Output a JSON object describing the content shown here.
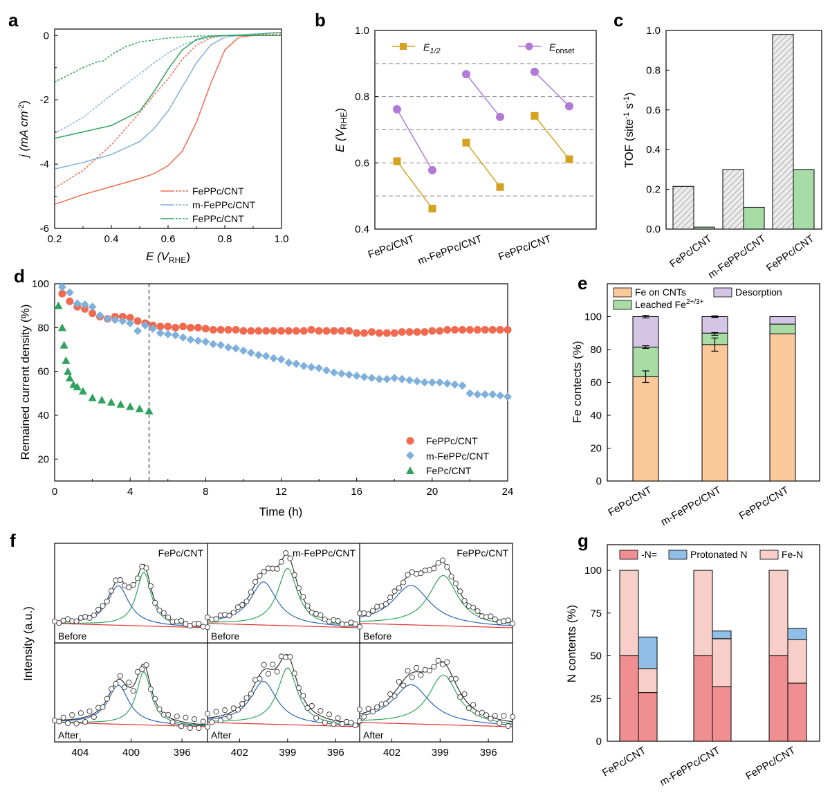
{
  "panel_labels": [
    "a",
    "b",
    "c",
    "d",
    "e",
    "f",
    "g"
  ],
  "colors": {
    "FePPc": "#ef6a4f",
    "mFePPc": "#7fb0dc",
    "FePc": "#2fa35d",
    "e12": "#d4a21f",
    "eonset": "#b07ad6",
    "hatch": "#9a9a9a",
    "tofFill": "#a8dca6",
    "feOnCnt": "#fcc99a",
    "leached": "#a9dba4",
    "desorption": "#d4c4e6",
    "nN": "#ef8f92",
    "protonated": "#8fbfe6",
    "feN": "#f7cfc8"
  },
  "chart_data": [
    {
      "id": "a",
      "type": "line",
      "xlabel": "E (V",
      "xlabel_sub": "RHE",
      "xlabel_close": ")",
      "ylabel": "j (mA cm",
      "ylabel_sup": "-2",
      "ylabel_close": ")",
      "xlim": [
        0.2,
        1.0
      ],
      "ylim": [
        -6,
        0.2
      ],
      "xticks": [
        "0.2",
        "0.4",
        "0.6",
        "0.8",
        "1.0"
      ],
      "yticks": [
        "0",
        "-2",
        "-4",
        "-6"
      ],
      "legend": [
        "FePPc/CNT",
        "m-FePPc/CNT",
        "FePPc/CNT"
      ],
      "series": [
        {
          "name": "FePPc/CNT",
          "style": "solid",
          "x": [
            0.2,
            0.3,
            0.4,
            0.5,
            0.55,
            0.6,
            0.65,
            0.7,
            0.75,
            0.8,
            0.85,
            0.9,
            1.0
          ],
          "y": [
            -5.25,
            -4.95,
            -4.7,
            -4.45,
            -4.3,
            -4.05,
            -3.6,
            -2.7,
            -1.5,
            -0.45,
            -0.05,
            0,
            0
          ]
        },
        {
          "name": "FePPc/CNT",
          "style": "dashed",
          "x": [
            0.2,
            0.3,
            0.4,
            0.5,
            0.55,
            0.6,
            0.65,
            0.7,
            0.75,
            0.8,
            0.85,
            0.9,
            1.0
          ],
          "y": [
            -4.75,
            -4.2,
            -3.4,
            -2.4,
            -1.85,
            -1.35,
            -0.75,
            -0.3,
            -0.08,
            0,
            0,
            0.02,
            0.05
          ]
        },
        {
          "name": "m-FePPc/CNT",
          "style": "solid",
          "x": [
            0.2,
            0.3,
            0.4,
            0.5,
            0.55,
            0.6,
            0.65,
            0.7,
            0.75,
            0.8,
            0.85,
            0.9,
            1.0
          ],
          "y": [
            -4.15,
            -3.95,
            -3.7,
            -3.3,
            -2.9,
            -2.35,
            -1.6,
            -0.85,
            -0.3,
            -0.05,
            0,
            0,
            0
          ]
        },
        {
          "name": "m-FePPc/CNT",
          "style": "dashed",
          "x": [
            0.2,
            0.3,
            0.4,
            0.5,
            0.55,
            0.6,
            0.65,
            0.7,
            0.75,
            0.8,
            0.85,
            0.9,
            1.0
          ],
          "y": [
            -3.05,
            -2.55,
            -1.85,
            -1.2,
            -0.85,
            -0.55,
            -0.3,
            -0.15,
            -0.06,
            0,
            0.02,
            0.05,
            0.1
          ]
        },
        {
          "name": "FePPc/CNT",
          "style": "solid",
          "x": [
            0.2,
            0.3,
            0.4,
            0.5,
            0.55,
            0.6,
            0.65,
            0.7,
            0.75,
            0.8,
            0.85,
            0.9,
            1.0
          ],
          "y": [
            -3.2,
            -3.0,
            -2.8,
            -2.35,
            -1.75,
            -1.05,
            -0.45,
            -0.12,
            -0.02,
            0,
            0,
            0,
            0
          ]
        },
        {
          "name": "FePPc/CNT",
          "style": "dashed",
          "x": [
            0.2,
            0.3,
            0.35,
            0.37,
            0.4,
            0.45,
            0.5,
            0.6,
            0.7,
            0.8,
            0.9,
            1.0
          ],
          "y": [
            -1.45,
            -1.0,
            -0.82,
            -0.8,
            -0.6,
            -0.35,
            -0.2,
            -0.08,
            -0.02,
            0,
            0.03,
            0.1
          ]
        }
      ]
    },
    {
      "id": "b",
      "type": "line",
      "ylabel": "E (V",
      "ylabel_sub": "RHE",
      "ylabel_close": ")",
      "ylim": [
        0.4,
        1.0
      ],
      "yticks": [
        "0.4",
        "0.6",
        "0.8",
        "1.0"
      ],
      "categories": [
        "FePc/CNT",
        "m-FePPc/CNT",
        "FePPc/CNT"
      ],
      "legend": [
        {
          "label": "E",
          "sub": "1/2"
        },
        {
          "label": "E",
          "sub": "onset"
        }
      ],
      "series": [
        {
          "name": "E1/2",
          "values": [
            [
              0.605,
              0.462
            ],
            [
              0.661,
              0.527
            ],
            [
              0.742,
              0.611
            ]
          ]
        },
        {
          "name": "Eonset",
          "values": [
            [
              0.762,
              0.578
            ],
            [
              0.868,
              0.739
            ],
            [
              0.875,
              0.771
            ]
          ]
        }
      ],
      "hlines": [
        0.5,
        0.6,
        0.7,
        0.8,
        0.9
      ]
    },
    {
      "id": "c",
      "type": "bar",
      "ylabel": "TOF (site",
      "ylabel_sup1": "-1",
      "ylabel_mid": " s",
      "ylabel_sup2": "-1",
      "ylabel_close": ")",
      "ylim": [
        0,
        1.0
      ],
      "yticks": [
        "0.0",
        "0.2",
        "0.4",
        "0.6",
        "0.8",
        "1.0"
      ],
      "categories": [
        "FePc/CNT",
        "m-FePPc/CNT",
        "FePPc/CNT"
      ],
      "series": [
        {
          "style": "hatched",
          "values": [
            0.215,
            0.3,
            0.98
          ]
        },
        {
          "style": "green",
          "values": [
            0.01,
            0.11,
            0.3
          ]
        }
      ]
    },
    {
      "id": "d",
      "type": "scatter",
      "xlabel": "Time (h)",
      "ylabel": "Remained current density (%)",
      "xlim": [
        0,
        24
      ],
      "ylim": [
        10,
        100
      ],
      "xticks": [
        "0",
        "4",
        "8",
        "12",
        "16",
        "20",
        "24"
      ],
      "yticks": [
        "20",
        "40",
        "60",
        "80",
        "100"
      ],
      "vline": 5,
      "legend": [
        "FePPc/CNT",
        "m-FePPc/CNT",
        "FePc/CNT"
      ],
      "series": [
        {
          "name": "FePPc/CNT",
          "marker": "circle",
          "x": [
            0.4,
            0.8,
            1.2,
            1.6,
            2,
            2.4,
            2.8,
            3.2,
            3.6,
            4,
            4.4,
            4.8,
            5.2,
            5.6,
            6,
            6.4,
            6.8,
            7.2,
            7.6,
            8,
            8.4,
            8.8,
            9.2,
            9.6,
            10,
            10.4,
            10.8,
            11.2,
            11.6,
            12,
            12.4,
            12.8,
            13.2,
            13.6,
            14,
            14.4,
            14.8,
            15.2,
            15.6,
            16,
            16.4,
            16.8,
            17.2,
            17.6,
            18,
            18.4,
            18.8,
            19.2,
            19.6,
            20,
            20.4,
            20.8,
            21.2,
            21.6,
            22,
            22.4,
            22.8,
            23.2,
            23.6,
            24
          ],
          "y": [
            95.5,
            92,
            89.5,
            88.5,
            86.5,
            85,
            84,
            85,
            85,
            84.5,
            83,
            82,
            81,
            80.5,
            80.5,
            80,
            80.5,
            80,
            80,
            79.5,
            79,
            79,
            79,
            79,
            78.5,
            78.5,
            78.5,
            78.5,
            78.5,
            78.5,
            78.5,
            78.5,
            78.5,
            79,
            78.5,
            78.5,
            78.5,
            78.5,
            78.5,
            77.5,
            77.5,
            78,
            77.5,
            77.5,
            77.5,
            78,
            78,
            78,
            78,
            78.5,
            78.5,
            79,
            79,
            79,
            79,
            79,
            79,
            79,
            79,
            79
          ]
        },
        {
          "name": "m-FePPc/CNT",
          "marker": "diamond",
          "x": [
            0.4,
            0.8,
            1.2,
            1.6,
            2,
            2.4,
            2.8,
            3.2,
            3.6,
            4,
            4.4,
            4.8,
            5.2,
            5.6,
            6,
            6.4,
            6.8,
            7.2,
            7.6,
            8,
            8.4,
            8.8,
            9.2,
            9.6,
            10,
            10.4,
            10.8,
            11.2,
            11.6,
            12,
            12.4,
            12.8,
            13.2,
            13.6,
            14,
            14.4,
            14.8,
            15.2,
            15.6,
            16,
            16.4,
            16.8,
            17.2,
            17.6,
            18,
            18.4,
            18.8,
            19.2,
            19.6,
            20,
            20.4,
            20.8,
            21.2,
            21.6,
            22,
            22.4,
            22.8,
            23.2,
            23.6,
            24
          ],
          "y": [
            98.5,
            96,
            91,
            90.5,
            89.5,
            85.5,
            84,
            83.5,
            83,
            82,
            78.5,
            81,
            79.5,
            77.5,
            77,
            76.5,
            75.5,
            74.5,
            74,
            73.5,
            72.5,
            72,
            71,
            70.5,
            69.5,
            68.5,
            67.5,
            67,
            66,
            65.5,
            64,
            63.5,
            62.5,
            62,
            61.5,
            60.5,
            59.5,
            59,
            58.5,
            58,
            57.5,
            57,
            56.5,
            56.5,
            57,
            56.5,
            56,
            55.5,
            55,
            55,
            55,
            54.5,
            54,
            53.5,
            50,
            49.5,
            49.5,
            49.5,
            49,
            48.5
          ]
        },
        {
          "name": "FePc/CNT",
          "marker": "triangle",
          "x": [
            0.2,
            0.4,
            0.5,
            0.6,
            0.7,
            0.8,
            1.0,
            1.2,
            1.5,
            2,
            2.5,
            3,
            3.5,
            4,
            4.5,
            5
          ],
          "y": [
            90,
            80,
            72,
            65,
            60,
            57,
            54,
            53,
            51,
            48,
            47,
            46,
            45,
            44,
            43,
            42
          ]
        }
      ]
    },
    {
      "id": "e",
      "type": "bar",
      "stacked": true,
      "ylabel": "Fe contects (%)",
      "ylim": [
        0,
        120
      ],
      "yticks": [
        "0",
        "20",
        "40",
        "60",
        "80",
        "100"
      ],
      "categories": [
        "FePc/CNT",
        "m-FePPc/CNT",
        "FePPc/CNT"
      ],
      "legend": [
        {
          "label": "Fe on CNTs"
        },
        {
          "label": "Leached Fe",
          "sup": "2+/3+"
        },
        {
          "label": "Desorption"
        }
      ],
      "series": [
        {
          "name": "Fe on CNTs",
          "values": [
            63.5,
            83,
            89.5
          ]
        },
        {
          "name": "Leached Fe2+/3+",
          "values": [
            18,
            7,
            6
          ]
        },
        {
          "name": "Desorption",
          "values": [
            18.5,
            10,
            4.5
          ]
        }
      ],
      "errors": [
        {
          "cat": 0,
          "y": 63.5,
          "err": 3.5
        },
        {
          "cat": 0,
          "y": 81.5,
          "err": 0.8
        },
        {
          "cat": 0,
          "y": 100,
          "err": 0.8
        },
        {
          "cat": 1,
          "y": 83,
          "err": 4
        },
        {
          "cat": 1,
          "y": 89.5,
          "err": 0.8
        },
        {
          "cat": 1,
          "y": 100,
          "err": 0.5
        }
      ]
    },
    {
      "id": "f",
      "type": "line",
      "ylabel": "Intensity (a.u.)",
      "panels": [
        {
          "title": "FePc/CNT",
          "xticks": [
            "404",
            "400",
            "396"
          ],
          "xrange": [
            406,
            394
          ],
          "tickvals": [
            404,
            400,
            396
          ],
          "centers": [
            401,
            399
          ],
          "widths": [
            1.0,
            0.7
          ],
          "amps": [
            0.55,
            0.75
          ]
        },
        {
          "title": "m-FePPc/CNT",
          "xticks": [
            "402",
            "399",
            "396"
          ],
          "xrange": [
            404,
            394.5
          ],
          "tickvals": [
            402,
            399,
            396
          ],
          "centers": [
            400.5,
            399
          ],
          "widths": [
            1.0,
            0.75
          ],
          "amps": [
            0.6,
            0.8
          ]
        },
        {
          "title": "FePPc/CNT",
          "xticks": [
            "402",
            "399",
            "396"
          ],
          "xrange": [
            404,
            394.5
          ],
          "tickvals": [
            402,
            399,
            396
          ],
          "centers": [
            400.8,
            398.8
          ],
          "widths": [
            1.4,
            1.1
          ],
          "amps": [
            0.55,
            0.7
          ]
        }
      ],
      "row_labels": [
        "Before",
        "After"
      ]
    },
    {
      "id": "g",
      "type": "bar",
      "stacked": true,
      "ylabel": "N contents (%)",
      "ylim": [
        0,
        115
      ],
      "yticks": [
        "0",
        "25",
        "50",
        "75",
        "100"
      ],
      "categories": [
        "FePc/CNT",
        "m-FePPc/CNT",
        "FePPc/CNT"
      ],
      "legend": [
        "-N=",
        "Protonated N",
        "Fe-N"
      ],
      "series_before": {
        "nN": [
          50,
          50,
          50
        ],
        "protonated": [
          0,
          0,
          0
        ],
        "feN": [
          50,
          50,
          50
        ]
      },
      "series_after": {
        "nN": [
          28.5,
          32,
          34
        ],
        "feN": [
          14,
          28,
          25.5
        ],
        "protonated": [
          18.5,
          4.5,
          6.5
        ]
      }
    }
  ]
}
